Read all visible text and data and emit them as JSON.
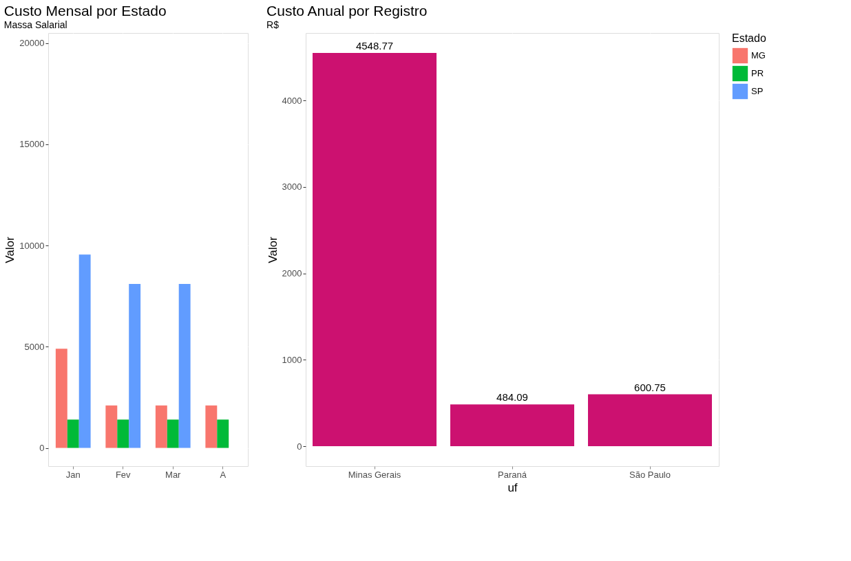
{
  "chart_data": [
    {
      "type": "bar",
      "title": "Custo Mensal por Estado",
      "subtitle": "Massa Salarial",
      "ylabel": "Valor",
      "legend_title": "Estado",
      "legend": "right",
      "grid": true,
      "categories": [
        "Jan",
        "Fev",
        "Mar",
        "A"
      ],
      "series": [
        {
          "name": "MG",
          "color": "#f8766d",
          "values": [
            4900,
            2100,
            2100,
            2100
          ]
        },
        {
          "name": "PR",
          "color": "#00ba38",
          "values": [
            1400,
            1400,
            1400,
            1400
          ]
        },
        {
          "name": "SP",
          "color": "#619cff",
          "values": [
            9550,
            8100,
            8100,
            null
          ]
        }
      ],
      "ylim": [
        -900,
        20500
      ],
      "yticks": [
        0,
        5000,
        10000,
        15000,
        20000
      ]
    },
    {
      "type": "bar",
      "title": "Custo Anual por Registro",
      "subtitle": "R$",
      "xlabel": "uf",
      "ylabel": "Valor",
      "grid": true,
      "data_labels": true,
      "categories": [
        "Minas Gerais",
        "Paraná",
        "São Paulo"
      ],
      "values": [
        4548.77,
        484.09,
        600.75
      ],
      "color": "#cc1170",
      "ylim": [
        -230,
        4780
      ],
      "yticks": [
        0,
        1000,
        2000,
        3000,
        4000
      ]
    }
  ]
}
